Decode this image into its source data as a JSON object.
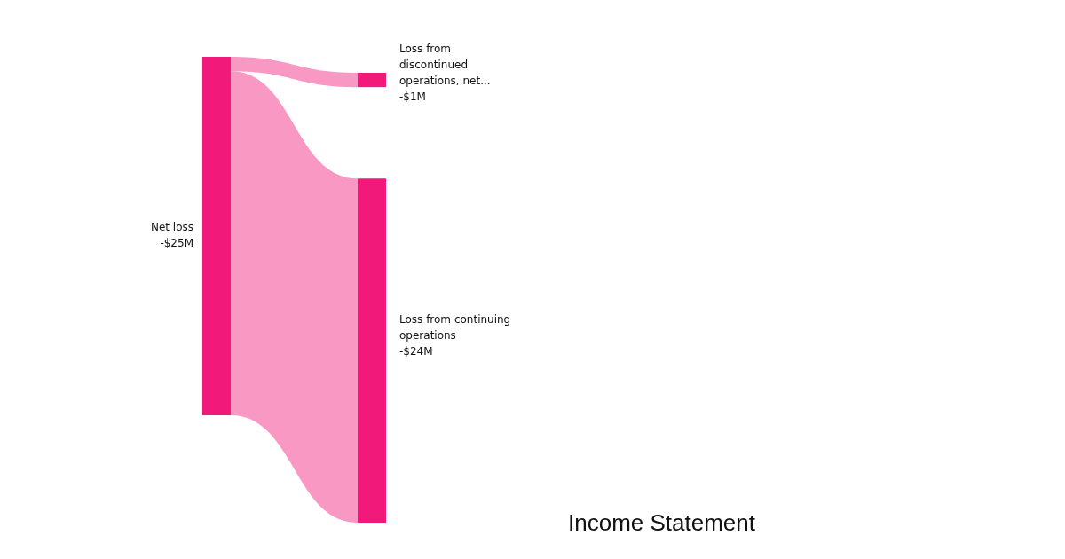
{
  "chart_data": {
    "type": "other",
    "title": "Income Statement",
    "categories": [
      "Net loss",
      "Loss from discontinued operations, net...",
      "Loss from continuing operations"
    ],
    "values": [
      -25,
      -1,
      -24
    ],
    "value_labels": [
      "-$25M",
      "-$1M",
      "-$24M"
    ],
    "colors": [
      "#f11a7b",
      "#f11a7b",
      "#f11a7b"
    ]
  }
}
